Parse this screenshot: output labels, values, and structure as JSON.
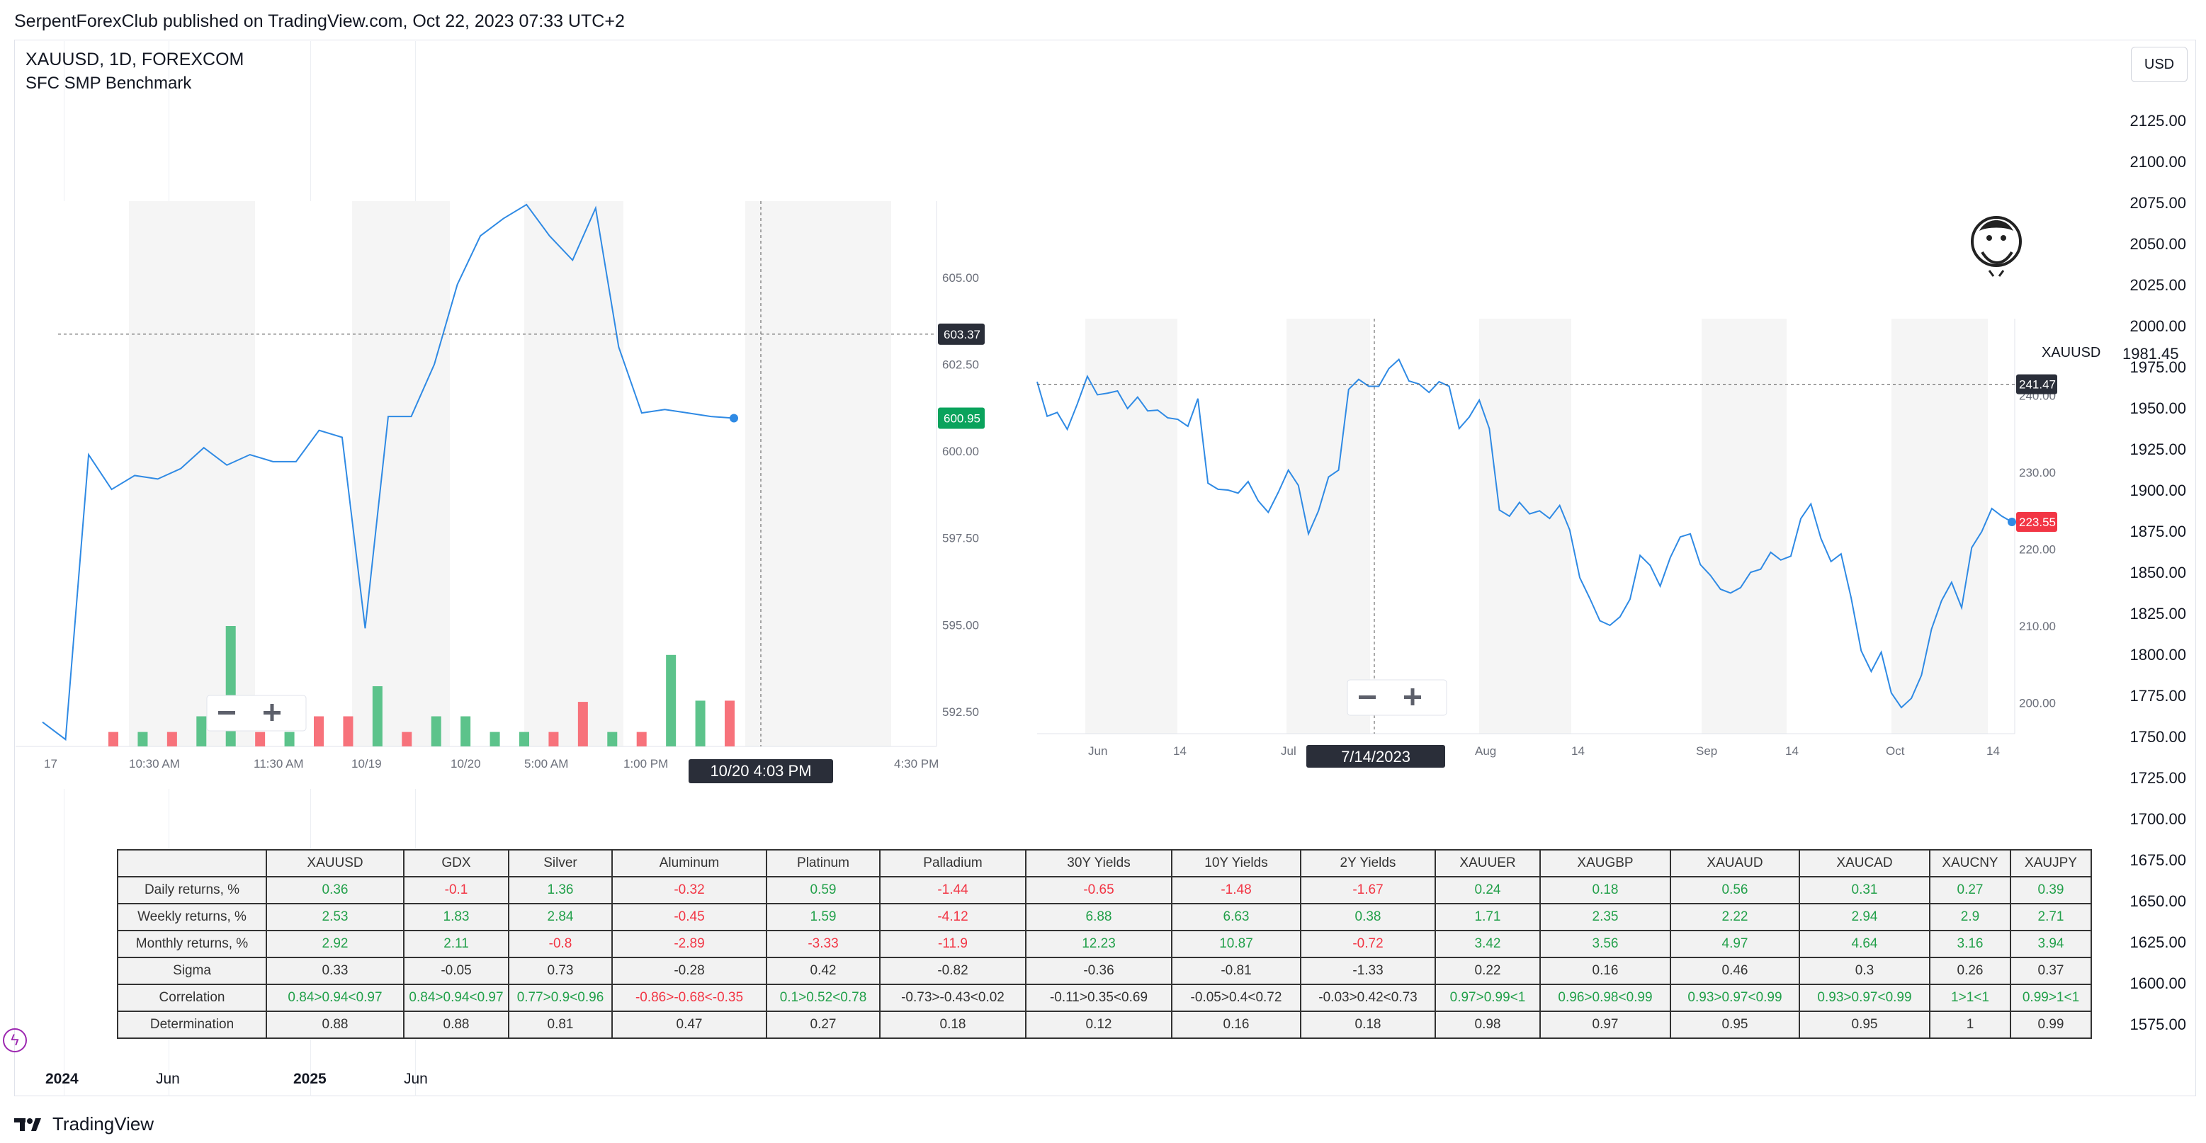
{
  "header": {
    "published_line": "SerpentForexClub published on TradingView.com, Oct 22, 2023 07:33 UTC+2"
  },
  "legend": {
    "symbol": "XAUUSD, 1D, FOREXCOM",
    "indicator": "SFC SMP Benchmark"
  },
  "currency_button": "USD",
  "main_price_scale": [
    "2125.00",
    "2100.00",
    "2075.00",
    "2050.00",
    "2025.00",
    "2000.00",
    "1975.00",
    "1950.00",
    "1925.00",
    "1900.00",
    "1875.00",
    "1850.00",
    "1825.00",
    "1800.00",
    "1775.00",
    "1750.00",
    "1725.00",
    "1700.00",
    "1675.00",
    "1650.00",
    "1625.00",
    "1600.00",
    "1575.00"
  ],
  "main_time_axis": [
    "2024",
    "Jun",
    "2025",
    "Jun"
  ],
  "left_pane": {
    "price_labels": [
      "605.00",
      "602.50",
      "600.00",
      "597.50",
      "595.00",
      "592.50"
    ],
    "crosshair_price": "603.37",
    "last_price": "600.95",
    "time_labels": [
      "17",
      "10:30 AM",
      "11:30 AM",
      "10/19",
      "10/20",
      "5:00 AM",
      "1:00 PM",
      "4:30 PM"
    ],
    "crosshair_date": "10/20 4:03 PM",
    "line": [
      592.2,
      591.7,
      599.9,
      598.9,
      599.3,
      599.2,
      599.5,
      600.1,
      599.6,
      599.9,
      599.7,
      599.7,
      600.6,
      600.4,
      594.9,
      601.0,
      601.0,
      602.5,
      604.8,
      606.2,
      606.7,
      607.1,
      606.2,
      605.5,
      607.0,
      603.0,
      601.1,
      601.2,
      601.1,
      601.0,
      600.95
    ],
    "volume_bars": [
      {
        "v": 0.12,
        "c": "red"
      },
      {
        "v": 0.12,
        "c": "green"
      },
      {
        "v": 0.12,
        "c": "red"
      },
      {
        "v": 0.25,
        "c": "green"
      },
      {
        "v": 1.0,
        "c": "green"
      },
      {
        "v": 0.12,
        "c": "red"
      },
      {
        "v": 0.12,
        "c": "green"
      },
      {
        "v": 0.25,
        "c": "red"
      },
      {
        "v": 0.25,
        "c": "red"
      },
      {
        "v": 0.5,
        "c": "green"
      },
      {
        "v": 0.12,
        "c": "red"
      },
      {
        "v": 0.25,
        "c": "green"
      },
      {
        "v": 0.25,
        "c": "green"
      },
      {
        "v": 0.12,
        "c": "green"
      },
      {
        "v": 0.12,
        "c": "green"
      },
      {
        "v": 0.12,
        "c": "red"
      },
      {
        "v": 0.37,
        "c": "red"
      },
      {
        "v": 0.12,
        "c": "green"
      },
      {
        "v": 0.12,
        "c": "red"
      },
      {
        "v": 0.76,
        "c": "green"
      },
      {
        "v": 0.38,
        "c": "green"
      },
      {
        "v": 0.38,
        "c": "red"
      }
    ]
  },
  "right_pane": {
    "series_name": "XAUUSD",
    "series_value": "1981.45",
    "price_labels": [
      "240.00",
      "230.00",
      "220.00",
      "210.00",
      "200.00"
    ],
    "crosshair_price": "241.47",
    "last_price": "223.55",
    "time_labels": [
      "Jun",
      "14",
      "Jul",
      "14",
      "Aug",
      "14",
      "Sep",
      "14",
      "Oct",
      "14"
    ],
    "crosshair_date": "7/14/2023",
    "line": [
      241.8,
      237.3,
      237.8,
      235.6,
      238.9,
      242.5,
      240.1,
      240.3,
      240.6,
      238.3,
      239.8,
      238.0,
      238.1,
      237.1,
      236.9,
      236.0,
      239.6,
      228.6,
      227.8,
      227.7,
      227.3,
      228.8,
      226.3,
      224.8,
      227.4,
      230.3,
      228.3,
      222.0,
      225.0,
      229.4,
      230.3,
      240.8,
      242.1,
      241.2,
      241.2,
      243.5,
      244.7,
      241.9,
      241.5,
      240.4,
      241.8,
      241.2,
      235.7,
      237.2,
      239.4,
      235.7,
      225.1,
      224.3,
      226.1,
      224.6,
      225.0,
      224.0,
      225.7,
      222.5,
      216.3,
      213.6,
      210.7,
      210.1,
      211.2,
      213.5,
      219.2,
      217.9,
      215.2,
      218.9,
      221.6,
      222.0,
      218.0,
      216.6,
      214.8,
      214.3,
      215.0,
      217.0,
      217.4,
      219.6,
      218.6,
      219.1,
      224.0,
      225.9,
      221.4,
      218.4,
      219.4,
      213.7,
      206.8,
      204.1,
      206.6,
      201.3,
      199.4,
      200.6,
      203.6,
      209.6,
      213.3,
      215.7,
      212.4,
      220.2,
      222.3,
      225.3,
      224.3,
      223.55
    ]
  },
  "stats_table": {
    "columns": [
      "XAUUSD",
      "GDX",
      "Silver",
      "Aluminum",
      "Platinum",
      "Palladium",
      "30Y Yields",
      "10Y Yields",
      "2Y Yields",
      "XAUUER",
      "XAUGBP",
      "XAUAUD",
      "XAUCAD",
      "XAUCNY",
      "XAUJPY"
    ],
    "rows": [
      {
        "label": "Daily returns, %",
        "cells": [
          [
            "0.36",
            "pos"
          ],
          [
            "-0.1",
            "neg"
          ],
          [
            "1.36",
            "pos"
          ],
          [
            "-0.32",
            "neg"
          ],
          [
            "0.59",
            "pos"
          ],
          [
            "-1.44",
            "neg"
          ],
          [
            "-0.65",
            "neg"
          ],
          [
            "-1.48",
            "neg"
          ],
          [
            "-1.67",
            "neg"
          ],
          [
            "0.24",
            "pos"
          ],
          [
            "0.18",
            "pos"
          ],
          [
            "0.56",
            "pos"
          ],
          [
            "0.31",
            "pos"
          ],
          [
            "0.27",
            "pos"
          ],
          [
            "0.39",
            "pos"
          ]
        ]
      },
      {
        "label": "Weekly returns, %",
        "cells": [
          [
            "2.53",
            "pos"
          ],
          [
            "1.83",
            "pos"
          ],
          [
            "2.84",
            "pos"
          ],
          [
            "-0.45",
            "neg"
          ],
          [
            "1.59",
            "pos"
          ],
          [
            "-4.12",
            "neg"
          ],
          [
            "6.88",
            "pos"
          ],
          [
            "6.63",
            "pos"
          ],
          [
            "0.38",
            "pos"
          ],
          [
            "1.71",
            "pos"
          ],
          [
            "2.35",
            "pos"
          ],
          [
            "2.22",
            "pos"
          ],
          [
            "2.94",
            "pos"
          ],
          [
            "2.9",
            "pos"
          ],
          [
            "2.71",
            "pos"
          ]
        ]
      },
      {
        "label": "Monthly returns, %",
        "cells": [
          [
            "2.92",
            "pos"
          ],
          [
            "2.11",
            "pos"
          ],
          [
            "-0.8",
            "neg"
          ],
          [
            "-2.89",
            "neg"
          ],
          [
            "-3.33",
            "neg"
          ],
          [
            "-11.9",
            "neg"
          ],
          [
            "12.23",
            "pos"
          ],
          [
            "10.87",
            "pos"
          ],
          [
            "-0.72",
            "neg"
          ],
          [
            "3.42",
            "pos"
          ],
          [
            "3.56",
            "pos"
          ],
          [
            "4.97",
            "pos"
          ],
          [
            "4.64",
            "pos"
          ],
          [
            "3.16",
            "pos"
          ],
          [
            "3.94",
            "pos"
          ]
        ]
      },
      {
        "label": "Sigma",
        "cells": [
          [
            "0.33",
            "neu"
          ],
          [
            "-0.05",
            "neu"
          ],
          [
            "0.73",
            "neu"
          ],
          [
            "-0.28",
            "neu"
          ],
          [
            "0.42",
            "neu"
          ],
          [
            "-0.82",
            "neu"
          ],
          [
            "-0.36",
            "neu"
          ],
          [
            "-0.81",
            "neu"
          ],
          [
            "-1.33",
            "neu"
          ],
          [
            "0.22",
            "neu"
          ],
          [
            "0.16",
            "neu"
          ],
          [
            "0.46",
            "neu"
          ],
          [
            "0.3",
            "neu"
          ],
          [
            "0.26",
            "neu"
          ],
          [
            "0.37",
            "neu"
          ]
        ]
      },
      {
        "label": "Correlation",
        "cells": [
          [
            "0.84>0.94<0.97",
            "pos"
          ],
          [
            "0.84>0.94<0.97",
            "pos"
          ],
          [
            "0.77>0.9<0.96",
            "pos"
          ],
          [
            "-0.86>-0.68<-0.35",
            "neg"
          ],
          [
            "0.1>0.52<0.78",
            "pos"
          ],
          [
            "-0.73>-0.43<0.02",
            "neu"
          ],
          [
            "-0.11>0.35<0.69",
            "neu"
          ],
          [
            "-0.05>0.4<0.72",
            "neu"
          ],
          [
            "-0.03>0.42<0.73",
            "neu"
          ],
          [
            "0.97>0.99<1",
            "pos"
          ],
          [
            "0.96>0.98<0.99",
            "pos"
          ],
          [
            "0.93>0.97<0.99",
            "pos"
          ],
          [
            "0.93>0.97<0.99",
            "pos"
          ],
          [
            "1>1<1",
            "pos"
          ],
          [
            "0.99>1<1",
            "pos"
          ]
        ]
      },
      {
        "label": "Determination",
        "cells": [
          [
            "0.88",
            "neu"
          ],
          [
            "0.88",
            "neu"
          ],
          [
            "0.81",
            "neu"
          ],
          [
            "0.47",
            "neu"
          ],
          [
            "0.27",
            "neu"
          ],
          [
            "0.18",
            "neu"
          ],
          [
            "0.12",
            "neu"
          ],
          [
            "0.16",
            "neu"
          ],
          [
            "0.18",
            "neu"
          ],
          [
            "0.98",
            "neu"
          ],
          [
            "0.97",
            "neu"
          ],
          [
            "0.95",
            "neu"
          ],
          [
            "0.95",
            "neu"
          ],
          [
            "1",
            "neu"
          ],
          [
            "0.99",
            "neu"
          ]
        ]
      }
    ]
  },
  "footer": {
    "brand": "TradingView"
  },
  "colors": {
    "line": "#2f8ae4",
    "green": "#22a04a",
    "red": "#f23645",
    "dark_label": "#2a2e39",
    "vol_green": "#5cc38b",
    "vol_red": "#f7727b"
  }
}
